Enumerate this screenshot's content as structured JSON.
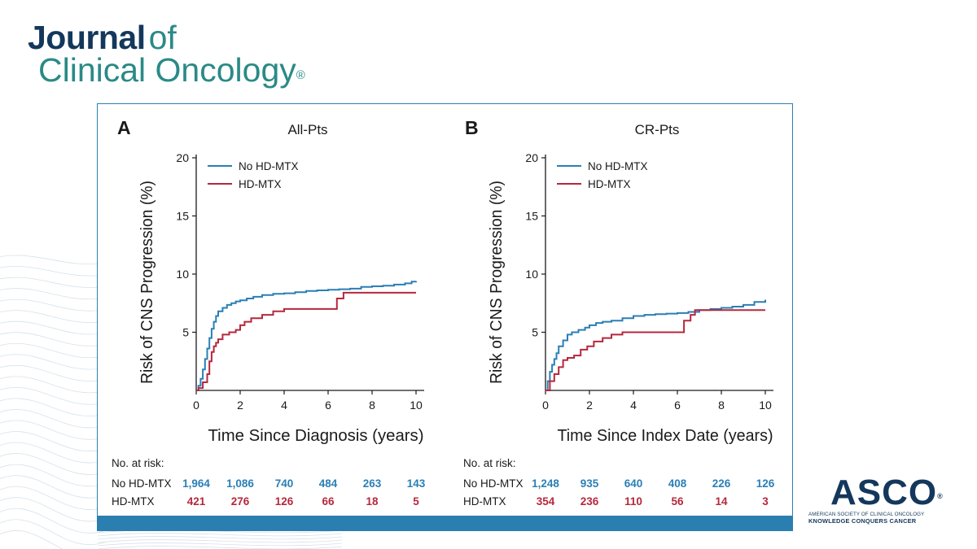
{
  "journal": {
    "word": "Journal",
    "of": "of",
    "line2": "Clinical Oncology",
    "reg": "®"
  },
  "asco": {
    "word": "ASCO",
    "reg": "®",
    "sub1": "AMERICAN SOCIETY OF CLINICAL ONCOLOGY",
    "sub2": "KNOWLEDGE CONQUERS CANCER"
  },
  "colors": {
    "no_hdmtx": "#2a7fb5",
    "hdmtx": "#b5283c",
    "frame": "#2b7fb0",
    "brand_navy": "#14375c",
    "brand_teal": "#2a8a86"
  },
  "risk_table_heading": "No. at risk:",
  "chart_data": [
    {
      "letter": "A",
      "title": "All-Pts",
      "type": "line",
      "step": true,
      "xlabel": "Time Since Diagnosis (years)",
      "ylabel": "Risk of CNS Progression (%)",
      "xlim": [
        0,
        10
      ],
      "ylim": [
        0,
        20
      ],
      "xticks": [
        0,
        2,
        4,
        6,
        8,
        10
      ],
      "yticks": [
        5,
        10,
        15,
        20
      ],
      "legend_position": "top-left",
      "series": [
        {
          "name": "No HD-MTX",
          "color": "#2a7fb5",
          "x": [
            0,
            0.1,
            0.2,
            0.3,
            0.4,
            0.5,
            0.6,
            0.7,
            0.8,
            0.9,
            1.0,
            1.2,
            1.4,
            1.6,
            1.8,
            2.0,
            2.3,
            2.6,
            3.0,
            3.5,
            4.0,
            4.5,
            5.0,
            5.5,
            6.0,
            6.5,
            7.0,
            7.5,
            8.0,
            8.5,
            9.0,
            9.5,
            9.8,
            10.0
          ],
          "y": [
            0,
            0.4,
            1.0,
            1.8,
            2.7,
            3.6,
            4.5,
            5.3,
            5.9,
            6.4,
            6.8,
            7.1,
            7.35,
            7.5,
            7.65,
            7.75,
            7.9,
            8.05,
            8.2,
            8.3,
            8.35,
            8.45,
            8.55,
            8.6,
            8.65,
            8.7,
            8.75,
            8.9,
            8.95,
            9.0,
            9.1,
            9.2,
            9.35,
            9.4
          ]
        },
        {
          "name": "HD-MTX",
          "color": "#b5283c",
          "x": [
            0,
            0.1,
            0.3,
            0.5,
            0.6,
            0.7,
            0.8,
            0.9,
            1.0,
            1.2,
            1.5,
            1.8,
            2.0,
            2.2,
            2.5,
            3.0,
            3.5,
            4.0,
            4.5,
            5.0,
            6.0,
            6.4,
            6.7,
            10.0
          ],
          "y": [
            0,
            0.2,
            0.7,
            1.4,
            2.5,
            3.3,
            3.8,
            4.1,
            4.4,
            4.8,
            5.0,
            5.2,
            5.6,
            5.9,
            6.2,
            6.5,
            6.8,
            7.0,
            7.0,
            7.0,
            7.0,
            7.9,
            8.4,
            8.4
          ]
        }
      ],
      "risk_table": {
        "rows": [
          {
            "label": "No HD-MTX",
            "color": "#2a7fb5",
            "values": [
              "1,964",
              "1,086",
              "740",
              "484",
              "263",
              "143"
            ]
          },
          {
            "label": "HD-MTX",
            "color": "#b5283c",
            "values": [
              "421",
              "276",
              "126",
              "66",
              "18",
              "5"
            ]
          }
        ]
      }
    },
    {
      "letter": "B",
      "title": "CR-Pts",
      "type": "line",
      "step": true,
      "xlabel": "Time Since Index Date (years)",
      "ylabel": "Risk of CNS Progression (%)",
      "xlim": [
        0,
        10
      ],
      "ylim": [
        0,
        20
      ],
      "xticks": [
        0,
        2,
        4,
        6,
        8,
        10
      ],
      "yticks": [
        5,
        10,
        15,
        20
      ],
      "legend_position": "top-left",
      "series": [
        {
          "name": "No HD-MTX",
          "color": "#2a7fb5",
          "x": [
            0,
            0.1,
            0.2,
            0.3,
            0.4,
            0.5,
            0.6,
            0.8,
            1.0,
            1.2,
            1.5,
            1.8,
            2.0,
            2.3,
            2.6,
            3.0,
            3.5,
            4.0,
            4.5,
            5.0,
            5.5,
            6.0,
            6.5,
            7.0,
            7.5,
            8.0,
            8.5,
            9.0,
            9.5,
            10.0
          ],
          "y": [
            0,
            0.8,
            1.6,
            2.2,
            2.7,
            3.2,
            3.8,
            4.3,
            4.8,
            5.0,
            5.2,
            5.4,
            5.6,
            5.8,
            5.9,
            6.0,
            6.2,
            6.4,
            6.5,
            6.55,
            6.6,
            6.65,
            6.75,
            6.9,
            7.0,
            7.1,
            7.2,
            7.35,
            7.6,
            7.8
          ]
        },
        {
          "name": "HD-MTX",
          "color": "#b5283c",
          "x": [
            0,
            0.2,
            0.4,
            0.6,
            0.8,
            1.0,
            1.3,
            1.6,
            1.9,
            2.2,
            2.6,
            3.0,
            3.5,
            4.0,
            6.0,
            6.3,
            6.6,
            6.8,
            10.0
          ],
          "y": [
            0,
            0.8,
            1.4,
            2.0,
            2.6,
            2.8,
            3.0,
            3.5,
            3.8,
            4.2,
            4.5,
            4.8,
            5.0,
            5.0,
            5.0,
            6.0,
            6.5,
            6.9,
            6.9
          ]
        }
      ],
      "risk_table": {
        "rows": [
          {
            "label": "No HD-MTX",
            "color": "#2a7fb5",
            "values": [
              "1,248",
              "935",
              "640",
              "408",
              "226",
              "126"
            ]
          },
          {
            "label": "HD-MTX",
            "color": "#b5283c",
            "values": [
              "354",
              "236",
              "110",
              "56",
              "14",
              "3"
            ]
          }
        ]
      }
    }
  ]
}
